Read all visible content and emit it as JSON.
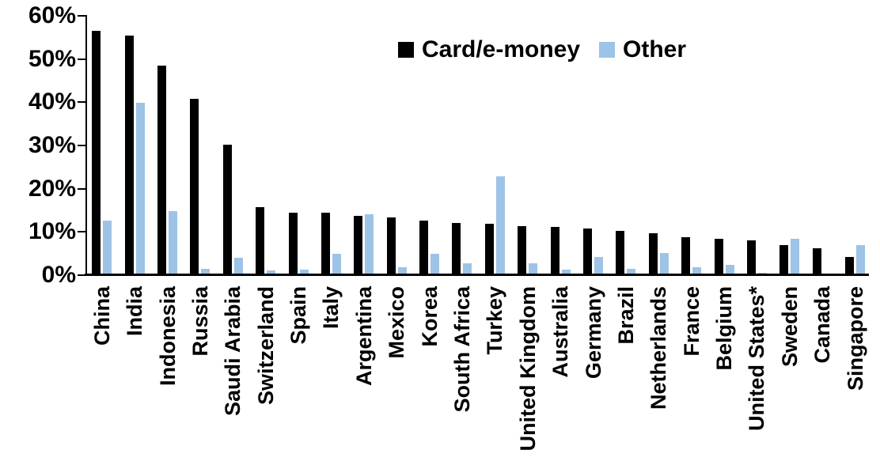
{
  "chart_data": {
    "type": "bar",
    "categories": [
      "China",
      "India",
      "Indonesia",
      "Russia",
      "Saudi Arabia",
      "Switzerland",
      "Spain",
      "Italy",
      "Argentina",
      "Mexico",
      "Korea",
      "South Africa",
      "Turkey",
      "United Kingdom",
      "Australia",
      "Germany",
      "Brazil",
      "Netherlands",
      "France",
      "Belgium",
      "United States*",
      "Sweden",
      "Canada",
      "Singapore"
    ],
    "series": [
      {
        "name": "Card/e-money",
        "color": "#000000",
        "values": [
          56.2,
          55.0,
          48.1,
          40.4,
          29.8,
          15.4,
          14.1,
          14.0,
          13.3,
          13.0,
          12.2,
          11.7,
          11.6,
          11.0,
          10.8,
          10.5,
          9.9,
          9.3,
          8.5,
          8.1,
          7.7,
          6.5,
          5.9,
          3.8
        ]
      },
      {
        "name": "Other",
        "color": "#9DC3E6",
        "values": [
          12.2,
          39.5,
          14.4,
          1.1,
          3.7,
          0.8,
          0.9,
          4.5,
          13.8,
          1.4,
          4.6,
          2.4,
          22.4,
          2.4,
          1.0,
          3.9,
          1.1,
          4.8,
          1.5,
          2.0,
          0.2,
          8.0,
          0.0,
          6.6
        ]
      }
    ],
    "ylim": [
      0,
      60
    ],
    "yticks": [
      "0%",
      "10%",
      "20%",
      "30%",
      "40%",
      "50%",
      "60%"
    ],
    "grid": false,
    "legend_position": "top-center",
    "xlabel": "",
    "ylabel": ""
  }
}
